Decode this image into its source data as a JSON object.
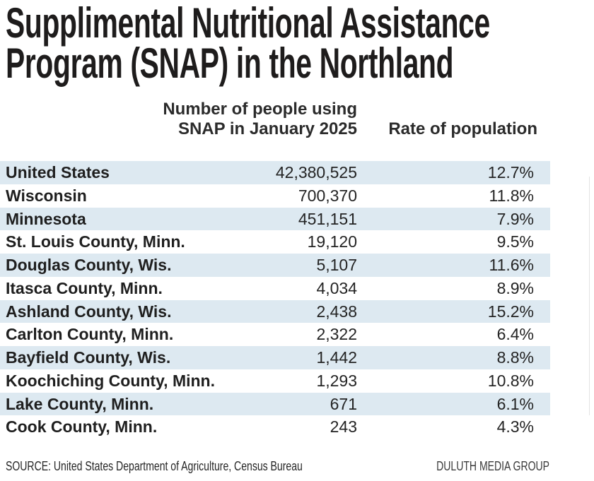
{
  "title": {
    "line1": "Supplimental Nutritional Assistance",
    "line2": "Program (SNAP) in the Northland"
  },
  "header": {
    "people_line1": "Number of people using",
    "people_line2": "SNAP in January 2025",
    "rate": "Rate of population"
  },
  "footer": {
    "source": "SOURCE: United States Department of Agriculture, Census Bureau",
    "credit": "DULUTH MEDIA GROUP"
  },
  "colors": {
    "band": "#dde9f1",
    "text": "#1f1f1f"
  },
  "chart_data": {
    "type": "table",
    "title": "Supplimental Nutritional Assistance Program (SNAP) in the Northland",
    "columns": [
      "",
      "Number of people using SNAP in January 2025",
      "Rate of population"
    ],
    "rows": [
      {
        "label": "United States",
        "people": "42,380,525",
        "rate": "12.7%",
        "people_num": 42380525,
        "rate_pct": 12.7
      },
      {
        "label": "Wisconsin",
        "people": "700,370",
        "rate": "11.8%",
        "people_num": 700370,
        "rate_pct": 11.8
      },
      {
        "label": "Minnesota",
        "people": "451,151",
        "rate": "7.9%",
        "people_num": 451151,
        "rate_pct": 7.9
      },
      {
        "label": "St. Louis County, Minn.",
        "people": "19,120",
        "rate": "9.5%",
        "people_num": 19120,
        "rate_pct": 9.5
      },
      {
        "label": "Douglas County, Wis.",
        "people": "5,107",
        "rate": "11.6%",
        "people_num": 5107,
        "rate_pct": 11.6
      },
      {
        "label": "Itasca County, Minn.",
        "people": "4,034",
        "rate": "8.9%",
        "people_num": 4034,
        "rate_pct": 8.9
      },
      {
        "label": "Ashland County, Wis.",
        "people": "2,438",
        "rate": "15.2%",
        "people_num": 2438,
        "rate_pct": 15.2
      },
      {
        "label": "Carlton County, Minn.",
        "people": "2,322",
        "rate": "6.4%",
        "people_num": 2322,
        "rate_pct": 6.4
      },
      {
        "label": "Bayfield County, Wis.",
        "people": "1,442",
        "rate": "8.8%",
        "people_num": 1442,
        "rate_pct": 8.8
      },
      {
        "label": "Koochiching County, Minn.",
        "people": "1,293",
        "rate": "10.8%",
        "people_num": 1293,
        "rate_pct": 10.8
      },
      {
        "label": "Lake County, Minn.",
        "people": "671",
        "rate": "6.1%",
        "people_num": 671,
        "rate_pct": 6.1
      },
      {
        "label": "Cook County, Minn.",
        "people": "243",
        "rate": "4.3%",
        "people_num": 243,
        "rate_pct": 4.3
      }
    ]
  }
}
